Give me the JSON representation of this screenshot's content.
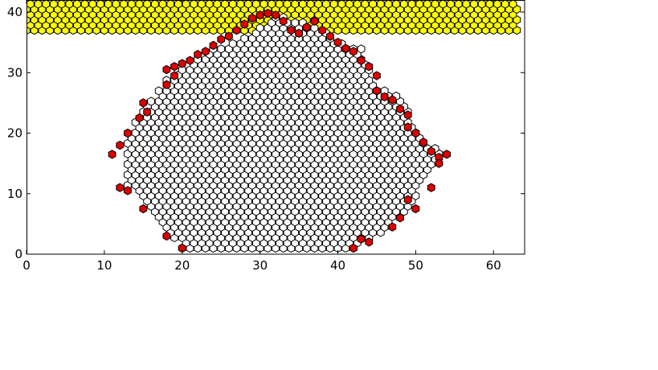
{
  "chart_data": {
    "type": "scatter",
    "title": "",
    "xlabel": "",
    "ylabel": "",
    "xlim": [
      0,
      64
    ],
    "ylim": [
      0,
      42
    ],
    "x_ticks": [
      0,
      10,
      20,
      30,
      40,
      50,
      60
    ],
    "y_ticks": [
      0,
      10,
      20,
      30,
      40
    ],
    "grid": false,
    "legend": "none",
    "marker": "hexagon",
    "hex_col_step": 1,
    "hex_row_step": 0.866,
    "colors": {
      "empty": "#ffffff",
      "boundary": "#e00000",
      "top_band": "#ffff00",
      "edge": "#000000"
    },
    "series": [
      {
        "color_key": "top_band",
        "shape": "band",
        "x_min": 0,
        "x_max": 63,
        "y_rows": [
          37,
          37.87,
          38.73,
          39.6,
          40.47,
          41.33
        ]
      },
      {
        "color_key": "empty",
        "shape": "droplet_interior",
        "profile_y": [
          1,
          2,
          3,
          5,
          7,
          9,
          11,
          13,
          15,
          16.5,
          18,
          20,
          22,
          24,
          26,
          28,
          30,
          32,
          34,
          35.5,
          37,
          38.5,
          39.5
        ],
        "profile_left": [
          20,
          19,
          18,
          17,
          16,
          14.5,
          13,
          12.5,
          12.2,
          12,
          12.5,
          13,
          14,
          15,
          16.5,
          17.5,
          18.5,
          21,
          24,
          27,
          29,
          31,
          32
        ],
        "profile_right": [
          42,
          43.5,
          45,
          47,
          49,
          50,
          50.5,
          51.5,
          53,
          54,
          52,
          50.5,
          49.5,
          49,
          48,
          45,
          44,
          44,
          43,
          40,
          38,
          35,
          33
        ]
      },
      {
        "color_key": "boundary",
        "shape": "points",
        "x": [
          20,
          42,
          18,
          43,
          44,
          15,
          48,
          50,
          12,
          13,
          52,
          18,
          19,
          18,
          19,
          20,
          21,
          22,
          23,
          24,
          25,
          26,
          27,
          28,
          29,
          30,
          31,
          32,
          33,
          34,
          35,
          36,
          37,
          38,
          39,
          40,
          41,
          42,
          43,
          44,
          45,
          15,
          15.5,
          14.5,
          13,
          11,
          12,
          45,
          46,
          47,
          48,
          49,
          49,
          50,
          51,
          52,
          53,
          54,
          53,
          49,
          47
        ],
        "y": [
          1,
          1,
          3,
          2.5,
          2,
          7.5,
          6,
          7.5,
          11,
          10.5,
          11,
          28,
          29.5,
          30.5,
          31,
          31.5,
          32,
          33,
          33.5,
          34.5,
          35.5,
          36,
          37,
          38,
          39,
          39.5,
          39.8,
          39.5,
          38.5,
          37,
          36.5,
          37.5,
          38.5,
          37,
          36,
          35,
          34,
          33.5,
          32,
          31,
          29.5,
          25,
          23.5,
          22.5,
          20,
          16.5,
          18,
          27,
          26,
          25.5,
          24,
          23,
          21,
          20,
          18.5,
          17,
          16,
          16.5,
          15,
          9,
          4.5
        ]
      }
    ]
  }
}
